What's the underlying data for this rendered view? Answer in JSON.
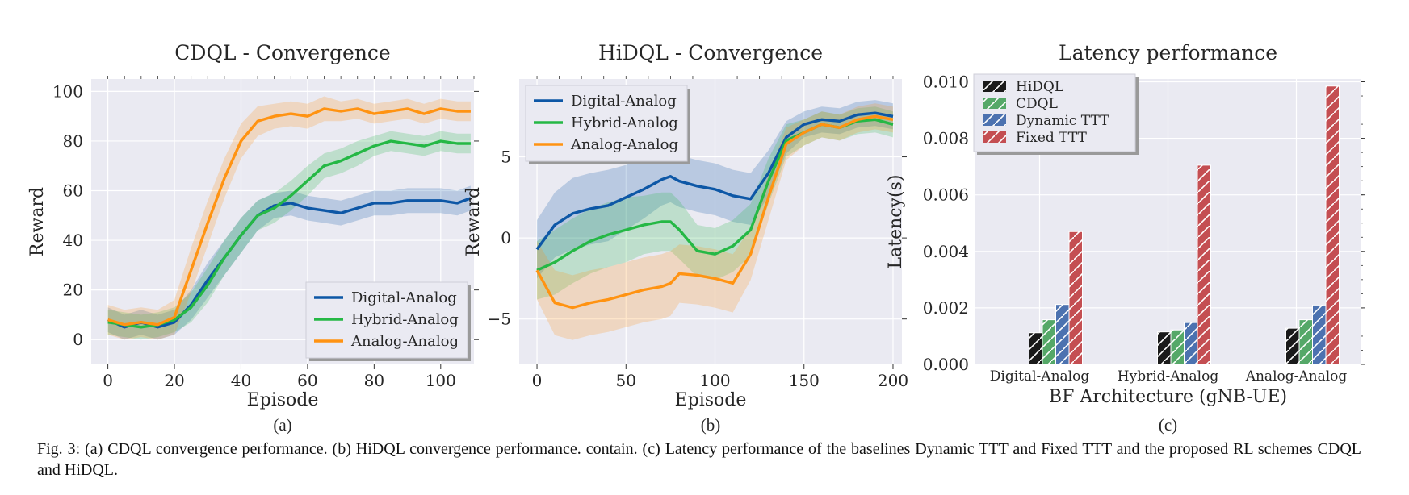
{
  "figure": {
    "caption": "Fig. 3: (a) CDQL convergence performance. (b) HiDQL convergence performance. contain. (c) Latency performance of the baselines Dynamic TTT and Fixed TTT and the proposed RL schemes CDQL and HiDQL."
  },
  "colors": {
    "plot_bg": "#eaeaf2",
    "grid": "#ffffff",
    "digital": "#0d57a6",
    "hybrid": "#25b845",
    "analog": "#ff9312",
    "bar_hidql": "#1a1a1a",
    "bar_cdql": "#55a868",
    "bar_dynamic": "#4c72b0",
    "bar_fixed": "#c44e52"
  },
  "chart_data": [
    {
      "type": "line",
      "panel_label": "(a)",
      "title": "CDQL - Convergence",
      "xlabel": "Episode",
      "ylabel": "Reward",
      "xlim": [
        -5,
        110
      ],
      "ylim": [
        -10,
        105
      ],
      "xticks": [
        0,
        20,
        40,
        60,
        80,
        100
      ],
      "yticks": [
        0,
        20,
        40,
        60,
        80,
        100
      ],
      "legend_position": "lower-right",
      "grid": true,
      "shaded_band": true,
      "series": [
        {
          "name": "Digital-Analog",
          "color_key": "digital",
          "x": [
            0,
            5,
            10,
            15,
            20,
            25,
            30,
            35,
            40,
            45,
            50,
            55,
            60,
            65,
            70,
            75,
            80,
            85,
            90,
            95,
            100,
            105,
            109
          ],
          "y": [
            8,
            5,
            7,
            5,
            7,
            14,
            24,
            33,
            42,
            50,
            54,
            55,
            53,
            52,
            51,
            53,
            55,
            55,
            56,
            56,
            56,
            55,
            57
          ],
          "spread": [
            5,
            5,
            5,
            5,
            5,
            6,
            7,
            7,
            7,
            6,
            5,
            5,
            5,
            5,
            5,
            5,
            5,
            5,
            5,
            5,
            5,
            5,
            5
          ]
        },
        {
          "name": "Hybrid-Analog",
          "color_key": "hybrid",
          "x": [
            0,
            5,
            10,
            15,
            20,
            25,
            30,
            35,
            40,
            45,
            50,
            55,
            60,
            65,
            70,
            75,
            80,
            85,
            90,
            95,
            100,
            105,
            109
          ],
          "y": [
            7,
            6,
            5,
            6,
            8,
            13,
            22,
            33,
            42,
            50,
            53,
            58,
            64,
            70,
            72,
            75,
            78,
            80,
            79,
            78,
            80,
            79,
            79
          ],
          "spread": [
            5,
            5,
            5,
            5,
            5,
            6,
            7,
            7,
            7,
            6,
            6,
            6,
            6,
            5,
            5,
            5,
            4,
            4,
            4,
            4,
            4,
            4,
            4
          ]
        },
        {
          "name": "Analog-Analog",
          "color_key": "analog",
          "x": [
            0,
            5,
            10,
            15,
            20,
            25,
            30,
            35,
            40,
            45,
            50,
            55,
            60,
            65,
            70,
            75,
            80,
            85,
            90,
            95,
            100,
            105,
            109
          ],
          "y": [
            8,
            6,
            7,
            6,
            9,
            28,
            47,
            65,
            80,
            88,
            90,
            91,
            90,
            93,
            92,
            93,
            91,
            92,
            93,
            91,
            93,
            92,
            92
          ],
          "spread": [
            6,
            6,
            6,
            6,
            7,
            9,
            9,
            8,
            7,
            6,
            5,
            5,
            5,
            5,
            4,
            4,
            4,
            4,
            4,
            4,
            4,
            4,
            4
          ]
        }
      ]
    },
    {
      "type": "line",
      "panel_label": "(b)",
      "title": "HiDQL - Convergence",
      "xlabel": "Episode",
      "ylabel": "Reward",
      "xlim": [
        -10,
        205
      ],
      "ylim": [
        -7.8,
        9.8
      ],
      "xticks": [
        0,
        50,
        100,
        150,
        200
      ],
      "yticks": [
        -5,
        0,
        5
      ],
      "legend_position": "upper-left",
      "grid": true,
      "shaded_band": true,
      "series": [
        {
          "name": "Digital-Analog",
          "color_key": "digital",
          "x": [
            0,
            10,
            20,
            30,
            40,
            50,
            60,
            70,
            75,
            80,
            90,
            100,
            110,
            120,
            130,
            140,
            150,
            160,
            170,
            180,
            190,
            200
          ],
          "y": [
            -0.7,
            0.8,
            1.5,
            1.8,
            2.0,
            2.5,
            3.0,
            3.6,
            3.8,
            3.5,
            3.2,
            3.0,
            2.6,
            2.4,
            4.0,
            6.2,
            7.0,
            7.3,
            7.2,
            7.6,
            7.7,
            7.5
          ],
          "spread": [
            1.8,
            2.0,
            2.2,
            2.2,
            2.2,
            2.0,
            1.8,
            1.6,
            1.6,
            1.6,
            1.6,
            1.6,
            1.6,
            1.6,
            1.4,
            1.0,
            0.8,
            0.8,
            0.8,
            0.8,
            0.8,
            0.8
          ]
        },
        {
          "name": "Hybrid-Analog",
          "color_key": "hybrid",
          "x": [
            0,
            10,
            20,
            30,
            40,
            50,
            60,
            70,
            75,
            80,
            90,
            100,
            110,
            120,
            130,
            140,
            150,
            160,
            170,
            180,
            190,
            200
          ],
          "y": [
            -2.0,
            -1.5,
            -0.8,
            -0.2,
            0.2,
            0.5,
            0.8,
            1.0,
            1.0,
            0.5,
            -0.8,
            -1.0,
            -0.5,
            0.5,
            3.5,
            6.0,
            6.5,
            7.0,
            6.8,
            7.2,
            7.3,
            7.0
          ],
          "spread": [
            1.8,
            2.0,
            2.0,
            2.0,
            2.0,
            2.0,
            1.8,
            1.8,
            1.8,
            1.8,
            1.6,
            1.6,
            1.6,
            1.6,
            1.4,
            1.0,
            0.8,
            0.8,
            0.8,
            0.8,
            0.8,
            0.8
          ]
        },
        {
          "name": "Analog-Analog",
          "color_key": "analog",
          "x": [
            0,
            10,
            20,
            30,
            40,
            50,
            60,
            70,
            75,
            80,
            90,
            100,
            110,
            120,
            130,
            140,
            150,
            160,
            170,
            180,
            190,
            200
          ],
          "y": [
            -2.0,
            -4.0,
            -4.3,
            -4.0,
            -3.8,
            -3.5,
            -3.2,
            -3.0,
            -2.8,
            -2.2,
            -2.3,
            -2.5,
            -2.8,
            -1.0,
            2.5,
            5.8,
            6.5,
            7.0,
            6.8,
            7.3,
            7.5,
            7.3
          ],
          "spread": [
            1.8,
            2.0,
            2.0,
            2.0,
            2.0,
            2.0,
            2.0,
            2.0,
            2.0,
            1.8,
            1.8,
            1.8,
            1.8,
            1.6,
            1.4,
            1.0,
            0.8,
            0.8,
            0.8,
            0.8,
            0.8,
            0.8
          ]
        }
      ]
    },
    {
      "type": "bar",
      "panel_label": "(c)",
      "title": "Latency performance",
      "xlabel": "BF Architecture (gNB-UE)",
      "ylabel": "Latency(s)",
      "ylim": [
        0,
        0.0101
      ],
      "yticks": [
        0.0,
        0.002,
        0.004,
        0.006,
        0.008,
        0.01
      ],
      "ytick_labels": [
        "0.000",
        "0.002",
        "0.004",
        "0.006",
        "0.008",
        "0.010"
      ],
      "categories": [
        "Digital-Analog",
        "Hybrid-Analog",
        "Analog-Analog"
      ],
      "legend_position": "upper-left",
      "grid": true,
      "hatch": "/",
      "series": [
        {
          "name": "HiDQL",
          "color_key": "bar_hidql",
          "values": [
            0.00112,
            0.00115,
            0.00128
          ]
        },
        {
          "name": "CDQL",
          "color_key": "bar_cdql",
          "values": [
            0.00158,
            0.00122,
            0.00158
          ]
        },
        {
          "name": "Dynamic TTT",
          "color_key": "bar_dynamic",
          "values": [
            0.00212,
            0.00148,
            0.0021
          ]
        },
        {
          "name": "Fixed TTT",
          "color_key": "bar_fixed",
          "values": [
            0.0047,
            0.00705,
            0.00985
          ]
        }
      ]
    }
  ]
}
